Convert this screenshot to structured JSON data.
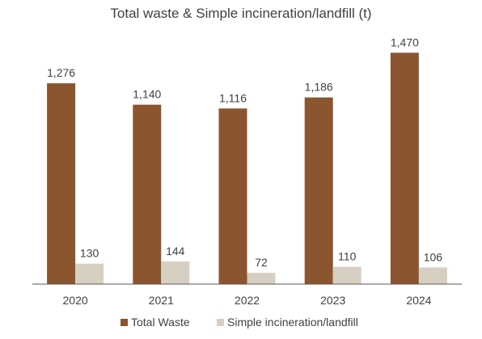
{
  "chart_data": {
    "type": "bar",
    "title": "Total waste & Simple incineration/landfill (t)",
    "categories": [
      "2020",
      "2021",
      "2022",
      "2023",
      "2024"
    ],
    "series": [
      {
        "name": "Total Waste",
        "values": [
          1276,
          1140,
          1116,
          1186,
          1470
        ],
        "labels": [
          "1,276",
          "1,140",
          "1,116",
          "1,186",
          "1,470"
        ],
        "color": "#8B5530"
      },
      {
        "name": "Simple incineration/landfill",
        "values": [
          130,
          144,
          72,
          110,
          106
        ],
        "labels": [
          "130",
          "144",
          "72",
          "110",
          "106"
        ],
        "color": "#D8CFC3"
      }
    ],
    "ylim": [
      0,
      1600
    ],
    "grid": false,
    "legend": "bottom"
  }
}
